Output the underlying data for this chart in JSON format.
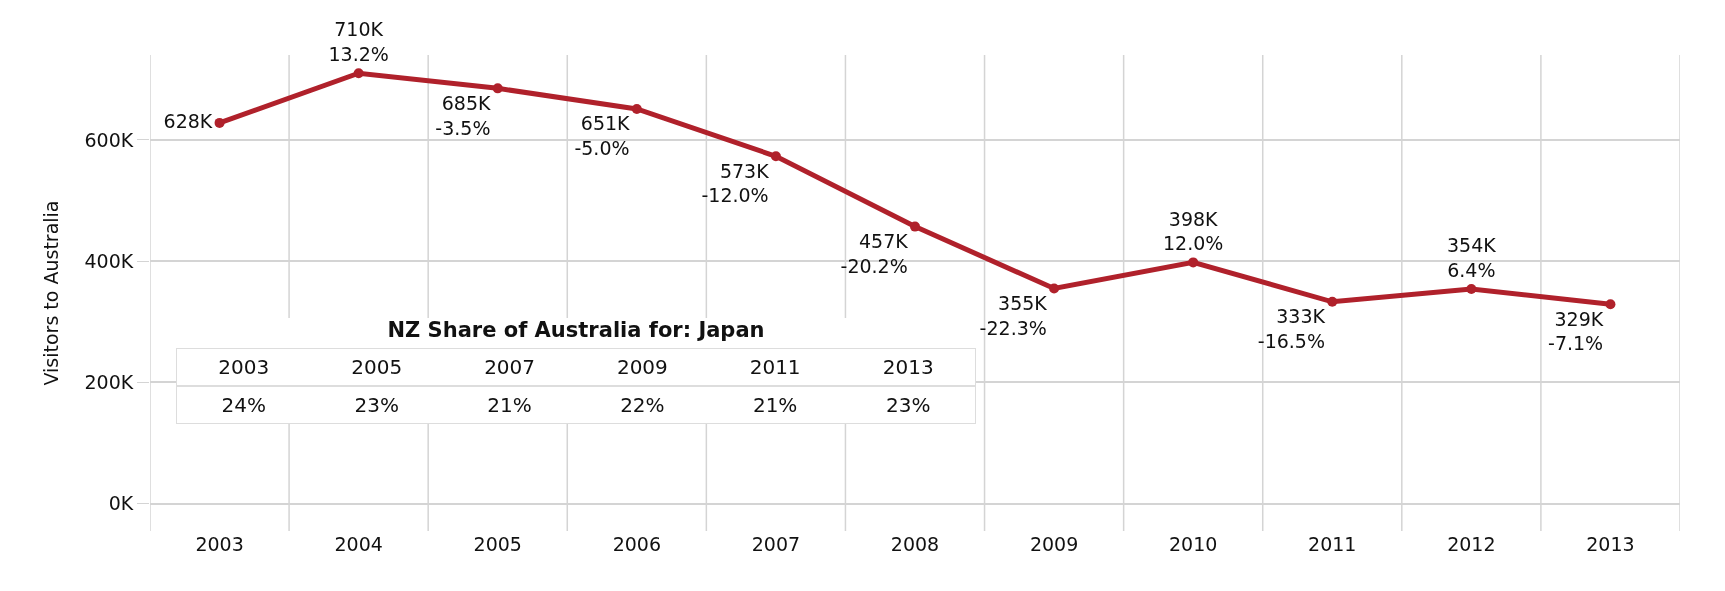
{
  "chart_data": [
    {
      "type": "line",
      "ylabel": "Visitors to Australia",
      "categories": [
        "2003",
        "2004",
        "2005",
        "2006",
        "2007",
        "2008",
        "2009",
        "2010",
        "2011",
        "2012",
        "2013"
      ],
      "series": [
        {
          "color": "#b0212b",
          "values": [
            628000,
            710000,
            685000,
            651000,
            573000,
            457000,
            355000,
            398000,
            333000,
            354000,
            329000
          ]
        }
      ],
      "value_labels": [
        "628K",
        "710K\n13.2%",
        "685K\n-3.5%",
        "651K\n-5.0%",
        "573K\n-12.0%",
        "457K\n-20.2%",
        "355K\n-22.3%",
        "398K\n12.0%",
        "333K\n-16.5%",
        "354K\n6.4%",
        "329K\n-7.1%"
      ],
      "ylim": [
        -45000,
        740000
      ],
      "yticks": [
        {
          "value": 0,
          "label": "0K"
        },
        {
          "value": 200000,
          "label": "200K"
        },
        {
          "value": 400000,
          "label": "400K"
        },
        {
          "value": 600000,
          "label": "600K"
        }
      ],
      "grid": true,
      "marker": "circle",
      "line_style": "solid",
      "legend": false,
      "annotations": [
        "NZ Share of Australia for: Japan",
        "2003",
        "2005",
        "2007",
        "2009",
        "2011",
        "2013",
        "24%",
        "23%",
        "21%",
        "22%",
        "21%",
        "23%"
      ]
    }
  ]
}
